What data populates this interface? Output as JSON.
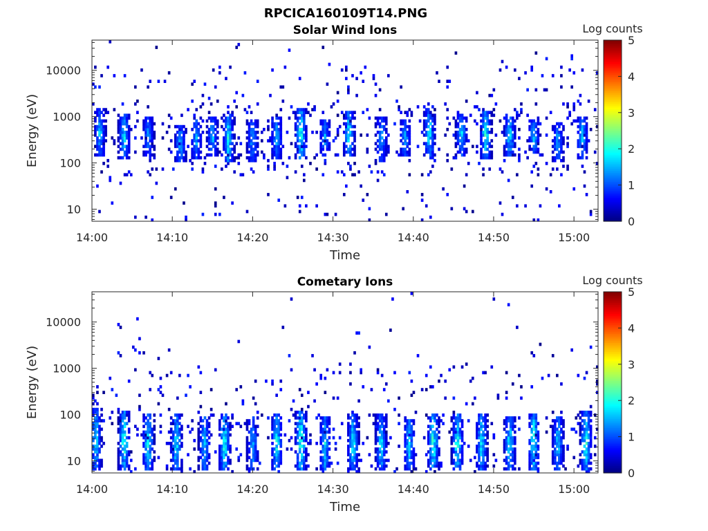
{
  "figure_title": "RPCICA160109T14.PNG",
  "colors": {
    "colormap": [
      "#00007f",
      "#0000ff",
      "#0080ff",
      "#00ffff",
      "#80ff80",
      "#ffff00",
      "#ff8000",
      "#ff0000",
      "#7f0000"
    ],
    "axes": "#262626",
    "background": "#ffffff"
  },
  "chart_data": [
    {
      "type": "heatmap",
      "title": "Solar Wind Ions",
      "xlabel": "Time",
      "ylabel": "Energy (eV)",
      "y_scale": "log",
      "ylim": [
        5.5,
        45000
      ],
      "y_ticks": [
        10,
        100,
        1000,
        10000
      ],
      "y_tick_labels": [
        "10",
        "100",
        "1000",
        "10000"
      ],
      "xlim": [
        "14:00",
        "15:03"
      ],
      "x_ticks": [
        "14:00",
        "14:10",
        "14:20",
        "14:30",
        "14:40",
        "14:50",
        "15:00"
      ],
      "colorbar": {
        "label": "Log counts",
        "range": [
          0,
          5
        ],
        "ticks": [
          0,
          1,
          2,
          3,
          4,
          5
        ]
      },
      "bursts": [
        {
          "t": "14:01",
          "lo": 150,
          "hi": 1500,
          "peak": 1.6
        },
        {
          "t": "14:04",
          "lo": 120,
          "hi": 1200,
          "peak": 1.8
        },
        {
          "t": "14:07",
          "lo": 150,
          "hi": 1000,
          "peak": 1.3
        },
        {
          "t": "14:11",
          "lo": 100,
          "hi": 700,
          "peak": 1.5
        },
        {
          "t": "14:13",
          "lo": 120,
          "hi": 900,
          "peak": 1.4
        },
        {
          "t": "14:15",
          "lo": 150,
          "hi": 1000,
          "peak": 1.6
        },
        {
          "t": "14:17",
          "lo": 100,
          "hi": 1200,
          "peak": 2.0
        },
        {
          "t": "14:20",
          "lo": 110,
          "hi": 900,
          "peak": 1.5
        },
        {
          "t": "14:23",
          "lo": 130,
          "hi": 1000,
          "peak": 1.6
        },
        {
          "t": "14:26",
          "lo": 120,
          "hi": 1500,
          "peak": 2.3
        },
        {
          "t": "14:29",
          "lo": 140,
          "hi": 900,
          "peak": 1.4
        },
        {
          "t": "14:32",
          "lo": 150,
          "hi": 1300,
          "peak": 2.0
        },
        {
          "t": "14:36",
          "lo": 110,
          "hi": 1000,
          "peak": 1.5
        },
        {
          "t": "14:39",
          "lo": 140,
          "hi": 900,
          "peak": 1.4
        },
        {
          "t": "14:42",
          "lo": 130,
          "hi": 1500,
          "peak": 1.9
        },
        {
          "t": "14:46",
          "lo": 150,
          "hi": 1200,
          "peak": 1.7
        },
        {
          "t": "14:49",
          "lo": 130,
          "hi": 1300,
          "peak": 2.1
        },
        {
          "t": "14:52",
          "lo": 150,
          "hi": 1000,
          "peak": 1.9
        },
        {
          "t": "14:55",
          "lo": 160,
          "hi": 900,
          "peak": 1.6
        },
        {
          "t": "14:58",
          "lo": 100,
          "hi": 800,
          "peak": 1.5
        },
        {
          "t": "15:01",
          "lo": 120,
          "hi": 1000,
          "peak": 1.7
        }
      ]
    },
    {
      "type": "heatmap",
      "title": "Cometary Ions",
      "xlabel": "Time",
      "ylabel": "Energy (eV)",
      "y_scale": "log",
      "ylim": [
        5.5,
        45000
      ],
      "y_ticks": [
        10,
        100,
        1000,
        10000
      ],
      "y_tick_labels": [
        "10",
        "100",
        "1000",
        "10000"
      ],
      "xlim": [
        "14:00",
        "15:03"
      ],
      "x_ticks": [
        "14:00",
        "14:10",
        "14:20",
        "14:30",
        "14:40",
        "14:50",
        "15:00"
      ],
      "colorbar": {
        "label": "Log counts",
        "range": [
          0,
          5
        ],
        "ticks": [
          0,
          1,
          2,
          3,
          4,
          5
        ]
      },
      "bursts": [
        {
          "t": "14:00.5",
          "lo": 6,
          "hi": 150,
          "peak": 1.8
        },
        {
          "t": "14:04",
          "lo": 6,
          "hi": 120,
          "peak": 2.2
        },
        {
          "t": "14:07",
          "lo": 6,
          "hi": 100,
          "peak": 2.1
        },
        {
          "t": "14:10.5",
          "lo": 6,
          "hi": 110,
          "peak": 2.0
        },
        {
          "t": "14:14",
          "lo": 6,
          "hi": 90,
          "peak": 1.7
        },
        {
          "t": "14:16.5",
          "lo": 6,
          "hi": 100,
          "peak": 2.2
        },
        {
          "t": "14:20",
          "lo": 6,
          "hi": 90,
          "peak": 1.6
        },
        {
          "t": "14:23",
          "lo": 6,
          "hi": 100,
          "peak": 2.0
        },
        {
          "t": "14:26",
          "lo": 6,
          "hi": 120,
          "peak": 2.4
        },
        {
          "t": "14:29",
          "lo": 6,
          "hi": 90,
          "peak": 1.8
        },
        {
          "t": "14:32.5",
          "lo": 6,
          "hi": 100,
          "peak": 1.9
        },
        {
          "t": "14:36",
          "lo": 6,
          "hi": 100,
          "peak": 1.8
        },
        {
          "t": "14:39.5",
          "lo": 6,
          "hi": 90,
          "peak": 1.7
        },
        {
          "t": "14:42.5",
          "lo": 6,
          "hi": 110,
          "peak": 2.3
        },
        {
          "t": "14:45.5",
          "lo": 6,
          "hi": 100,
          "peak": 2.2
        },
        {
          "t": "14:48.5",
          "lo": 6,
          "hi": 110,
          "peak": 1.9
        },
        {
          "t": "14:52",
          "lo": 6,
          "hi": 90,
          "peak": 2.0
        },
        {
          "t": "14:55",
          "lo": 6,
          "hi": 100,
          "peak": 2.2
        },
        {
          "t": "14:58",
          "lo": 6,
          "hi": 90,
          "peak": 1.8
        },
        {
          "t": "15:01.5",
          "lo": 6,
          "hi": 120,
          "peak": 2.1
        }
      ]
    }
  ]
}
